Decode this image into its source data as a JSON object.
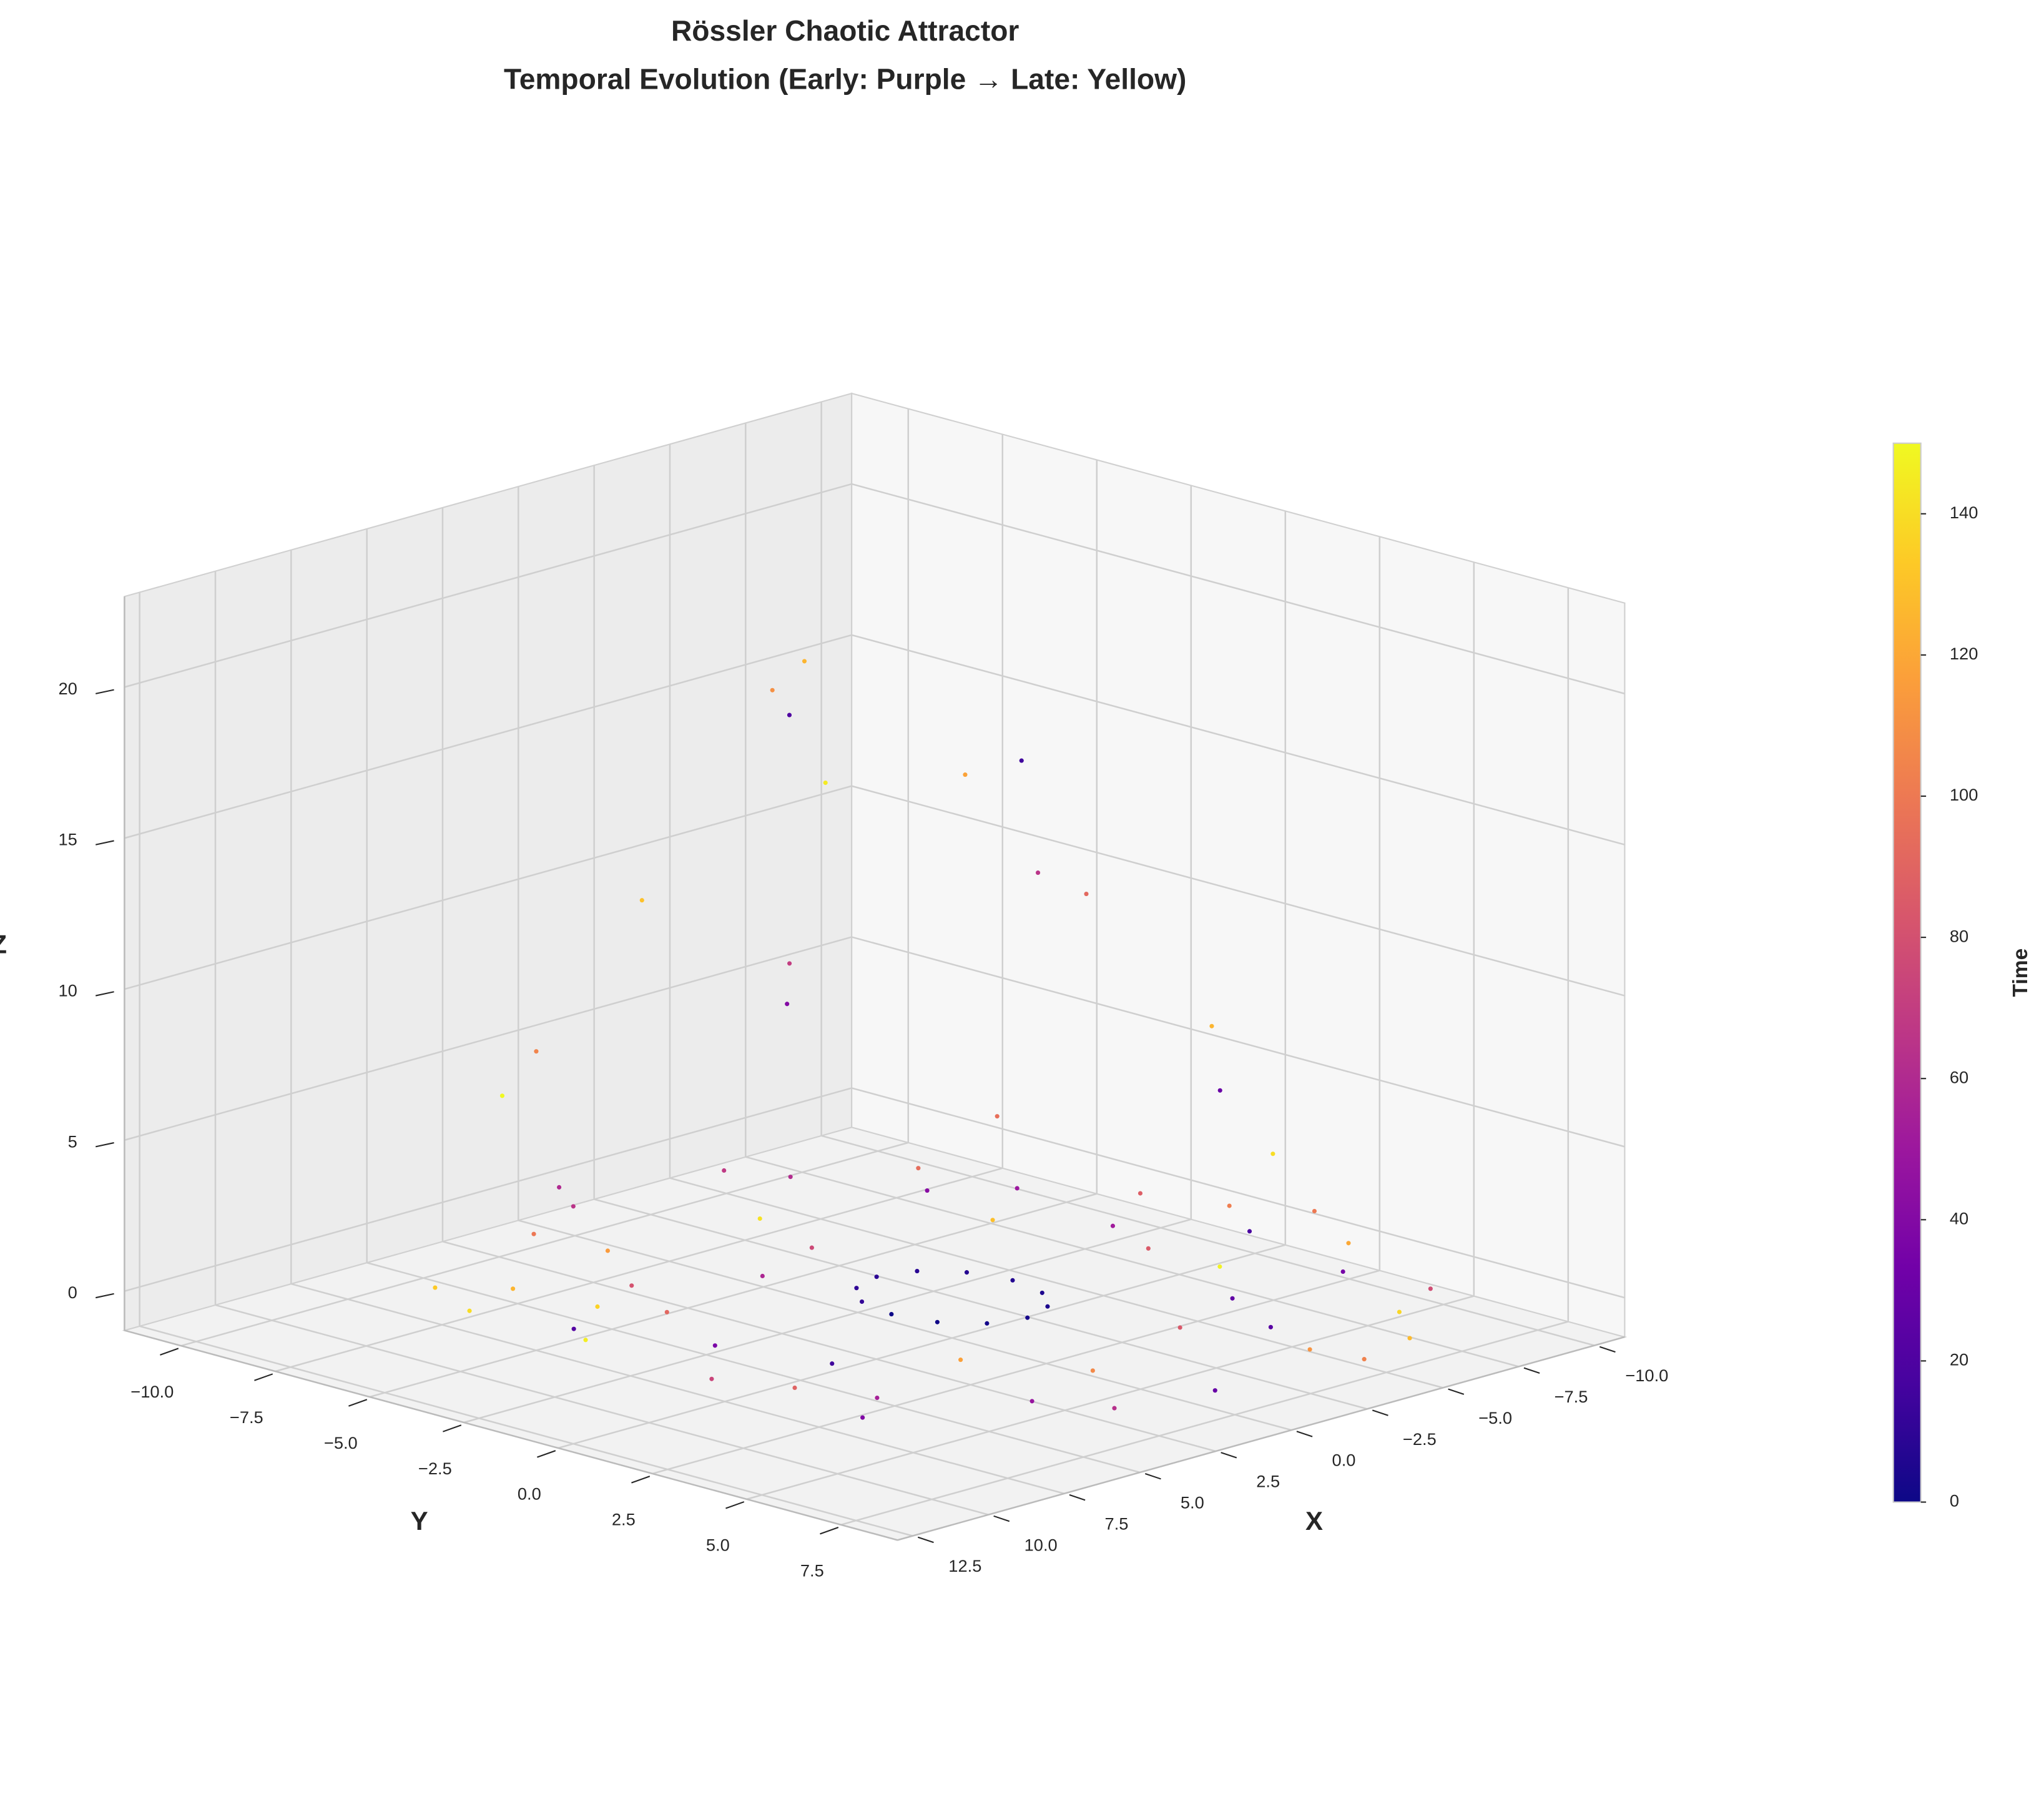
{
  "chart_data": {
    "type": "scatter3d",
    "title": "Rössler Chaotic Attractor",
    "subtitle": "Temporal Evolution (Early: Purple → Late: Yellow)",
    "xlabel": "X",
    "ylabel": "Y",
    "zlabel": "Z",
    "colorbar_label": "Time",
    "colormap": "plasma",
    "grid": true,
    "xlim": [
      -11,
      13
    ],
    "ylim": [
      -11.5,
      9
    ],
    "zlim": [
      -1.3,
      23
    ],
    "clim": [
      0,
      150
    ],
    "xticks": [
      {
        "value": -10,
        "label": "−10.0"
      },
      {
        "value": -7.5,
        "label": "−7.5"
      },
      {
        "value": -5,
        "label": "−5.0"
      },
      {
        "value": -2.5,
        "label": "−2.5"
      },
      {
        "value": 0,
        "label": "0.0"
      },
      2.5,
      {
        "value": 5,
        "label": "5.0"
      },
      7.5,
      {
        "value": 10,
        "label": "10.0"
      },
      12.5
    ],
    "yticks": [
      {
        "value": -10,
        "label": "−10.0"
      },
      {
        "value": -7.5,
        "label": "−7.5"
      },
      {
        "value": -5,
        "label": "−5.0"
      },
      {
        "value": -2.5,
        "label": "−2.5"
      },
      {
        "value": 0,
        "label": "0.0"
      },
      2.5,
      {
        "value": 5,
        "label": "5.0"
      },
      7.5
    ],
    "zticks": [
      0,
      5,
      10,
      15,
      20
    ],
    "cticks": [
      0,
      20,
      40,
      60,
      80,
      100,
      120,
      140
    ],
    "x": [
      2,
      1.73,
      1,
      0,
      -1,
      -1.73,
      -2,
      -1.73,
      -1,
      0,
      1,
      1.73,
      8.5,
      -7.8,
      5.2,
      -4.5,
      9.8,
      -9.2,
      3.1,
      -2.6,
      6.9,
      -6.3,
      10.6,
      -8.7,
      1.4,
      -5.9,
      7.7,
      -3.8,
      4.6,
      -7.1,
      2.2,
      -9.6,
      8.1,
      -1.5,
      6.2,
      -4.4,
      9.3,
      -6.8,
      0.8,
      -8.2,
      5.8,
      -2.9,
      3.7,
      -5.2,
      10.2,
      -3.3,
      7.2,
      -7.5,
      4.1,
      -0.6,
      8.8,
      -9.9,
      2.9,
      -4.9,
      6.6,
      -6.1,
      1.9,
      -1.8,
      3.5,
      1.2,
      4.8,
      -1.6,
      -0.8,
      -2.3,
      0.4,
      -0.2,
      6.5,
      4.2,
      3,
      -2.1,
      7.5,
      8,
      -2,
      -2.5,
      1,
      -3,
      5.5,
      -1.5
    ],
    "y": [
      0,
      1,
      1.73,
      2,
      1.73,
      1,
      0,
      -1,
      -1.73,
      -2,
      -1.73,
      -1,
      -3.2,
      4.1,
      6.3,
      -7.9,
      1.5,
      -2.4,
      -8.6,
      7.4,
      -6.1,
      6.8,
      -1.2,
      0.9,
      8.1,
      -5.4,
      4.2,
      -9.1,
      -4.8,
      -6.6,
      5.5,
      2.8,
      -7.2,
      -6.3,
      1.8,
      3.9,
      5.1,
      -1.2,
      -9.4,
      6.1,
      -2.9,
      8.6,
      3.2,
      -3.1,
      -4.6,
      5.8,
      -0.5,
      -4.3,
      7.6,
      -4.2,
      2.9,
      -0.6,
      -6.8,
      8.2,
      -4.1,
      2.2,
      -3.5,
      4.6,
      -1.5,
      -3.8,
      0.5,
      -5.2,
      1.2,
      -1.5,
      2.6,
      3.4,
      -3,
      -1,
      -1.9,
      5.2,
      -5,
      -5.5,
      5.5,
      6.5,
      2,
      7.2,
      -6,
      4
    ],
    "z": [
      0.05,
      0.05,
      0.05,
      0.05,
      0.05,
      0.05,
      0.05,
      0.05,
      0.05,
      0.05,
      0.05,
      0.05,
      0.3,
      0.1,
      0.2,
      0.1,
      0.6,
      0.1,
      0.1,
      0.1,
      0.2,
      0.1,
      1.2,
      0.1,
      0.1,
      0.1,
      0.3,
      0.1,
      0.1,
      0.1,
      0.1,
      0.1,
      0.2,
      0.1,
      0.2,
      0.1,
      0.4,
      0.1,
      0.1,
      0.1,
      0.2,
      0.1,
      0.1,
      0.1,
      0.9,
      0.1,
      0.3,
      0.1,
      0.1,
      0.1,
      0.5,
      0.1,
      0.1,
      0.1,
      0.2,
      0.1,
      0.1,
      0.1,
      19.8,
      19.2,
      18.6,
      18.9,
      18,
      16.2,
      15.1,
      14.5,
      14,
      10.6,
      11.3,
      10.2,
      8.6,
      7.1,
      8.2,
      6.3,
      7,
      4.5,
      3.2,
      2.6
    ],
    "time": [
      0,
      1,
      2,
      3,
      4,
      5,
      6,
      7,
      8,
      9,
      10,
      11,
      22,
      35,
      48,
      61,
      74,
      87,
      99,
      112,
      125,
      138,
      146,
      18,
      29,
      42,
      55,
      68,
      81,
      94,
      107,
      120,
      133,
      142,
      15,
      27,
      39,
      52,
      65,
      78,
      91,
      104,
      117,
      129,
      140,
      24,
      37,
      50,
      63,
      76,
      89,
      102,
      115,
      127,
      136,
      148,
      58,
      84,
      20,
      110,
      145,
      125,
      15,
      118,
      65,
      92,
      130,
      40,
      70,
      125,
      105,
      150,
      30,
      140,
      95,
      100,
      60,
      85
    ]
  }
}
